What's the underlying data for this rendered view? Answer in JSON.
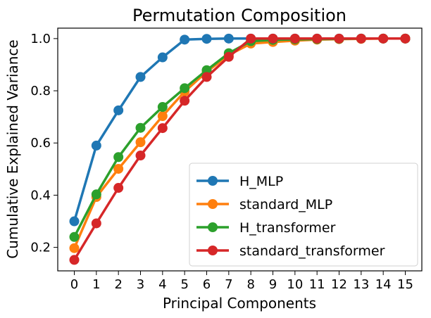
{
  "chart_data": {
    "type": "line",
    "title": "Permutation Composition",
    "xlabel": "Principal Components",
    "ylabel": "Cumulative Explained Variance",
    "x": [
      0,
      1,
      2,
      3,
      4,
      5,
      6,
      7,
      8,
      9,
      10,
      11,
      12,
      13,
      14,
      15
    ],
    "xlim": [
      -0.75,
      15.75
    ],
    "ylim": [
      0.11,
      1.04
    ],
    "yticks": [
      0.2,
      0.4,
      0.6,
      0.8,
      1.0
    ],
    "ytick_labels": [
      "0.2",
      "0.4",
      "0.6",
      "0.8",
      "1.0"
    ],
    "grid": false,
    "legend_position": "lower-right",
    "series": [
      {
        "name": "H_MLP",
        "color": "#1f77b4",
        "values": [
          0.3,
          0.59,
          0.725,
          0.853,
          0.928,
          0.996,
          0.999,
          1.0,
          1.0,
          1.0,
          1.0,
          1.0,
          1.0,
          1.0,
          1.0,
          1.0
        ]
      },
      {
        "name": "standard_MLP",
        "color": "#ff7f0e",
        "values": [
          0.197,
          0.393,
          0.501,
          0.603,
          0.703,
          0.797,
          0.873,
          0.937,
          0.981,
          0.987,
          0.992,
          0.996,
          0.998,
          0.999,
          1.0,
          1.0
        ]
      },
      {
        "name": "H_transformer",
        "color": "#2ca02c",
        "values": [
          0.24,
          0.403,
          0.546,
          0.658,
          0.738,
          0.81,
          0.879,
          0.944,
          0.99,
          0.995,
          0.997,
          0.998,
          0.999,
          1.0,
          1.0,
          1.0
        ]
      },
      {
        "name": "standard_transformer",
        "color": "#d62728",
        "values": [
          0.152,
          0.292,
          0.428,
          0.552,
          0.657,
          0.762,
          0.853,
          0.93,
          1.0,
          1.0,
          1.0,
          1.0,
          1.0,
          1.0,
          1.0,
          1.0
        ]
      }
    ]
  }
}
